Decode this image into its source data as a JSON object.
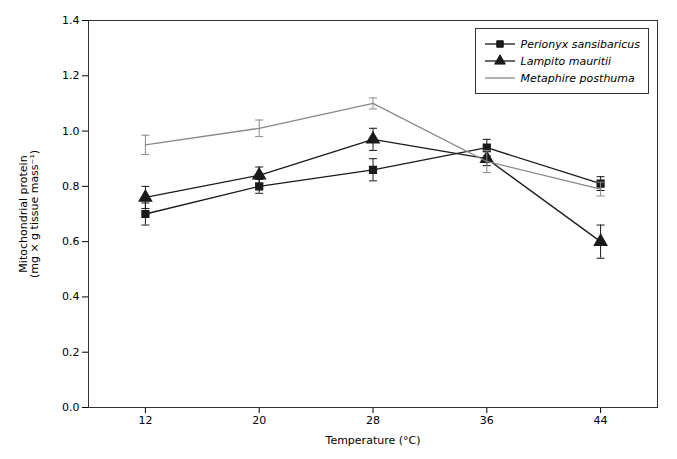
{
  "chart_data": {
    "type": "line",
    "x": [
      12,
      20,
      28,
      36,
      44
    ],
    "series": [
      {
        "name": "Perionyx sansibaricus",
        "color": "#1a1a1a",
        "marker": "square",
        "line_style": "solid",
        "values": [
          0.7,
          0.8,
          0.86,
          0.94,
          0.81
        ],
        "yerr": [
          0.04,
          0.025,
          0.04,
          0.03,
          0.025
        ]
      },
      {
        "name": "Lampito mauritii",
        "color": "#1a1a1a",
        "marker": "triangle",
        "line_style": "solid",
        "values": [
          0.76,
          0.84,
          0.97,
          0.9,
          0.6
        ],
        "yerr": [
          0.04,
          0.03,
          0.04,
          0.025,
          0.06
        ]
      },
      {
        "name": "Metaphire posthuma",
        "color": "#888888",
        "marker": "none",
        "line_style": "solid",
        "values": [
          0.95,
          1.01,
          1.1,
          0.89,
          0.79
        ],
        "yerr": [
          0.035,
          0.03,
          0.02,
          0.04,
          0.025
        ]
      }
    ],
    "xlabel": "Temperature (°C)",
    "ylabel": "Mitochondrial protein\n(mg × g tissue mass⁻¹)",
    "xlim": [
      8,
      48
    ],
    "xticks": [
      12,
      20,
      28,
      36,
      44
    ],
    "ylim": [
      0.0,
      1.4
    ],
    "yticks": [
      {
        "value": 0.0,
        "label": "0.0"
      },
      0.2,
      0.4,
      0.6,
      0.8,
      {
        "value": 1.0,
        "label": "1.0"
      },
      1.2,
      1.4
    ],
    "legend": "upper right",
    "grid": false
  }
}
